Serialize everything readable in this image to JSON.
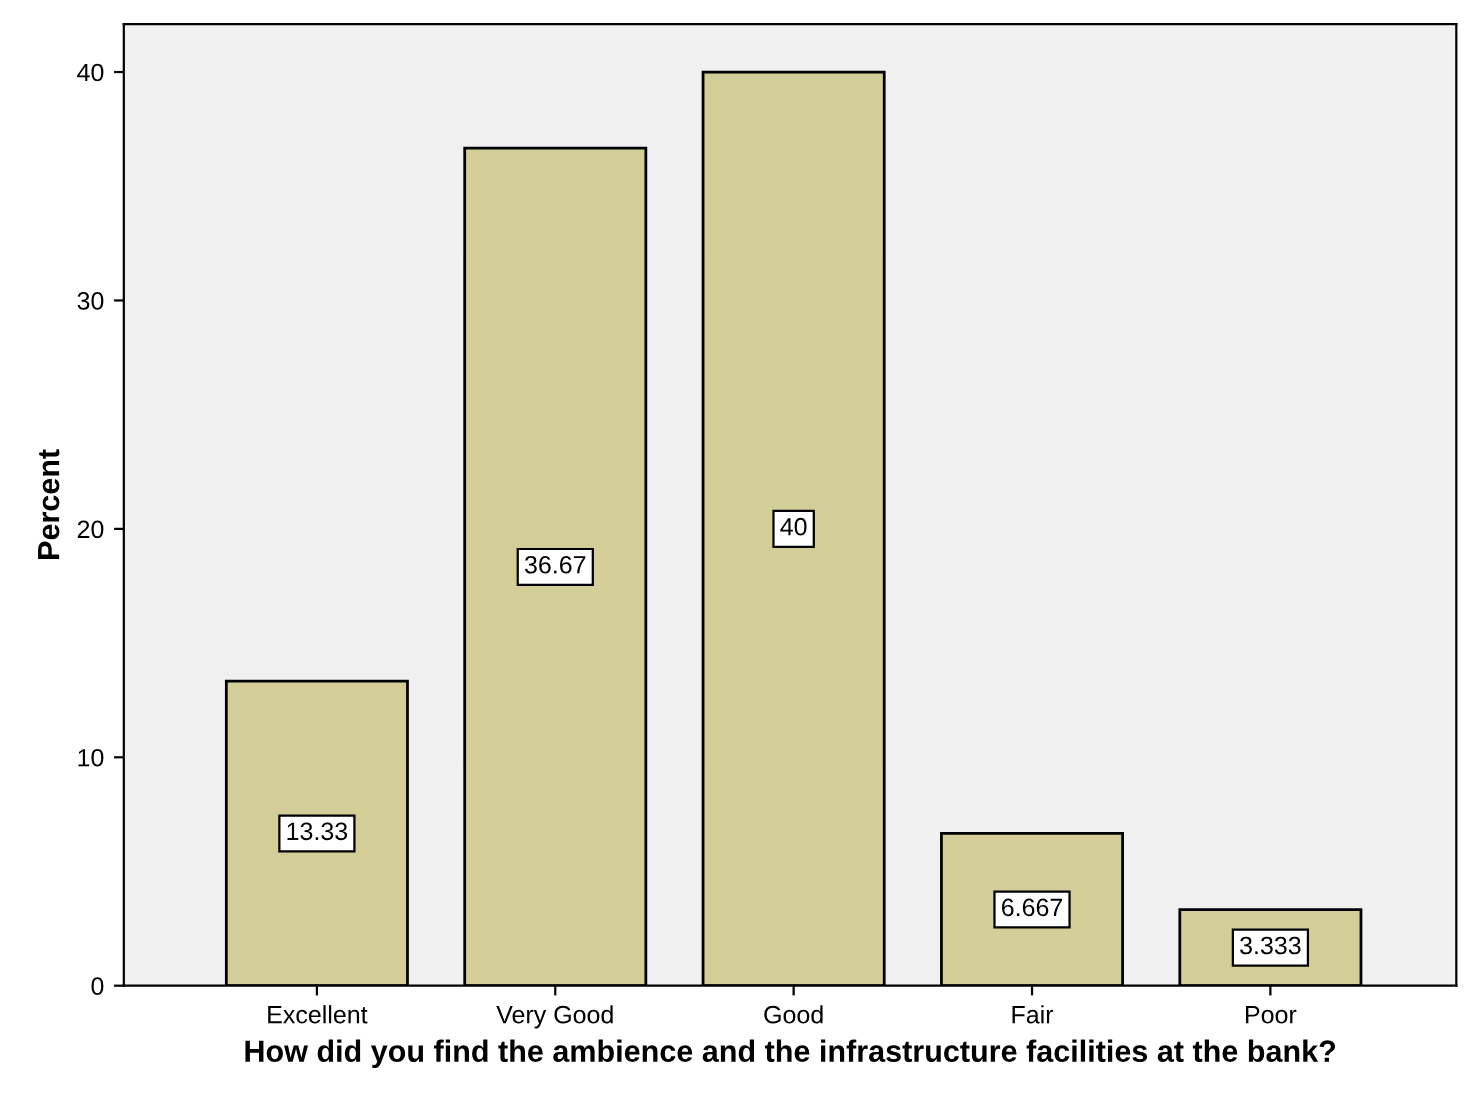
{
  "chart_data": {
    "type": "bar",
    "xlabel": "How did you find the ambience and the infrastructure facilities at the bank?",
    "ylabel": "Percent",
    "categories": [
      "Excellent",
      "Very Good",
      "Good",
      "Fair",
      "Poor"
    ],
    "values": [
      13.33,
      36.67,
      40,
      6.667,
      3.333
    ],
    "color": "#d3ce97",
    "ylim": [
      0,
      42.1
    ],
    "yticks": [
      0,
      10,
      20,
      30,
      40
    ],
    "grid": false,
    "data_labels": true
  }
}
